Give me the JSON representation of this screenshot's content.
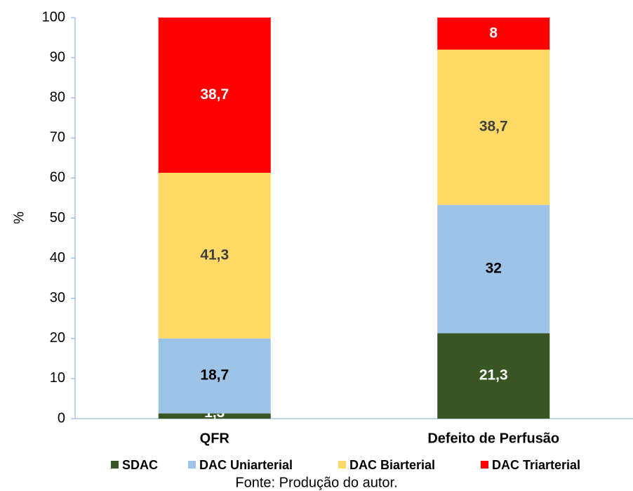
{
  "chart_data": {
    "type": "stacked-bar",
    "y_label": "%",
    "categories": [
      "QFR",
      "Defeito de Perfusão"
    ],
    "series": [
      {
        "name": "SDAC",
        "color": "#375623",
        "values": [
          1.3,
          21.3
        ],
        "value_labels": [
          "1,3",
          "21,3"
        ]
      },
      {
        "name": "DAC Uniarterial",
        "color": "#9dc3e6",
        "values": [
          18.7,
          32
        ],
        "value_labels": [
          "18,7",
          "32"
        ]
      },
      {
        "name": "DAC Biarterial",
        "color": "#ffd966",
        "values": [
          41.3,
          38.7
        ],
        "value_labels": [
          "41,3",
          "38,7"
        ]
      },
      {
        "name": "DAC Triarterial",
        "color": "#ff0000",
        "values": [
          38.7,
          8
        ],
        "value_labels": [
          "38,7",
          "8"
        ]
      }
    ],
    "ylim": [
      0,
      100
    ],
    "yticks": [
      0,
      10,
      20,
      30,
      40,
      50,
      60,
      70,
      80,
      90,
      100
    ],
    "source": "Fonte: Produção do autor."
  }
}
